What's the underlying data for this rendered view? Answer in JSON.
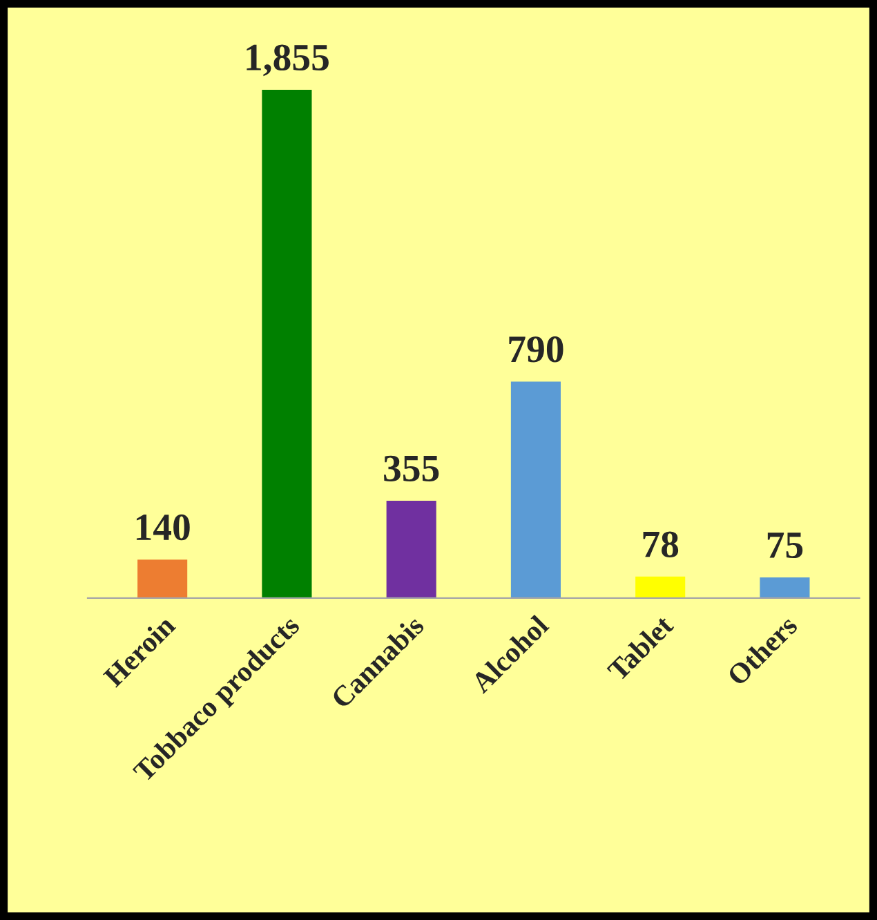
{
  "chart_data": {
    "type": "bar",
    "categories": [
      "Heroin",
      "Tobbaco products",
      "Cannabis",
      "Alcohol",
      "Tablet",
      "Others"
    ],
    "values": [
      140,
      1855,
      355,
      790,
      78,
      75
    ],
    "colors": [
      "#ed7d31",
      "#008000",
      "#7030a0",
      "#5b9bd5",
      "#ffff00",
      "#5b9bd5"
    ],
    "value_labels": [
      "140",
      "1,855",
      "355",
      "790",
      "78",
      "75"
    ]
  }
}
